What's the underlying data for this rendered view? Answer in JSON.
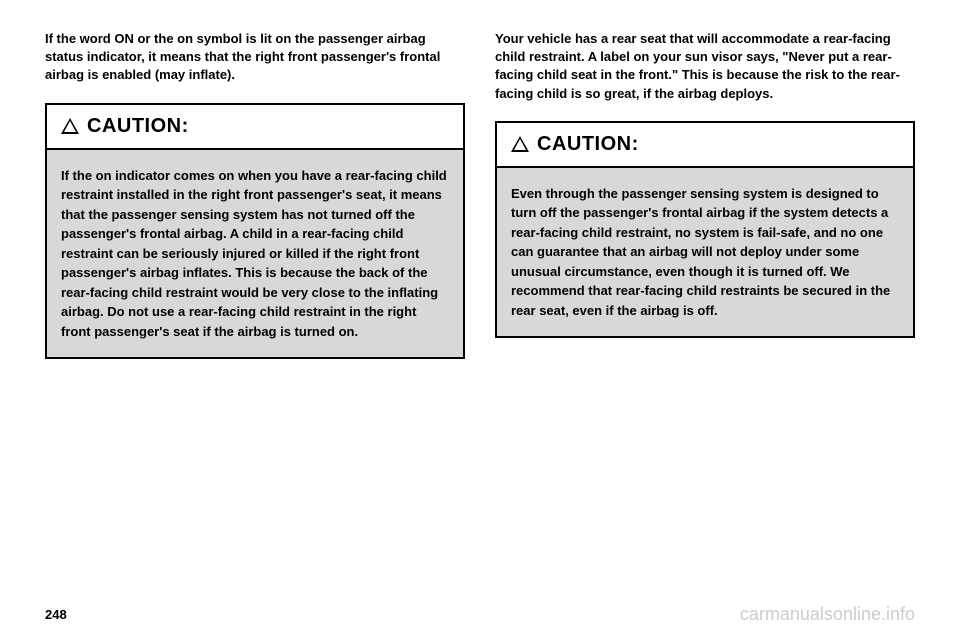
{
  "left": {
    "intro": "If the word ON or the on symbol is lit on the passenger airbag status indicator, it means that the right front passenger's frontal airbag is enabled (may inflate).",
    "caution_label": "CAUTION:",
    "caution_body": "If the on indicator comes on when you have a rear-facing child restraint installed in the right front passenger's seat, it means that the passenger sensing system has not turned off the passenger's frontal airbag. A child in a rear-facing child restraint can be seriously injured or killed if the right front passenger's airbag inflates. This is because the back of the rear-facing child restraint would be very close to the inflating airbag. Do not use a rear-facing child restraint in the right front passenger's seat if the airbag is turned on."
  },
  "right": {
    "intro": "Your vehicle has a rear seat that will accommodate a rear-facing child restraint. A label on your sun visor says, \"Never put a rear-facing child seat in the front.\" This is because the risk to the rear-facing child is so great, if the airbag deploys.",
    "caution_label": "CAUTION:",
    "caution_body": "Even through the passenger sensing system is designed to turn off the passenger's frontal airbag if the system detects a rear-facing child restraint, no system is fail-safe, and no one can guarantee that an airbag will not deploy under some unusual circumstance, even though it is turned off. We recommend that rear-facing child restraints be secured in the rear seat, even if the airbag is off."
  },
  "footer": {
    "page_number": "248",
    "watermark": "carmanualsonline.info"
  },
  "styling": {
    "background_color": "#ffffff",
    "text_color": "#000000",
    "caution_body_bg": "#d8d8d8",
    "border_color": "#000000",
    "watermark_color": "#cccccc",
    "intro_fontsize": 13,
    "caution_label_fontsize": 20,
    "caution_body_fontsize": 13,
    "page_number_fontsize": 13,
    "watermark_fontsize": 18
  }
}
